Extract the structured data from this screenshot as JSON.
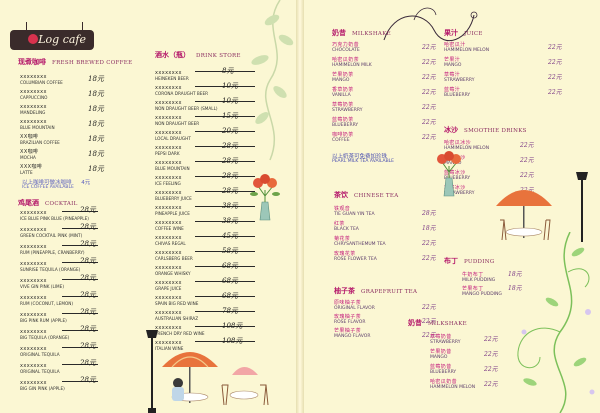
{
  "brand": {
    "logo_text": "Log cafe"
  },
  "left": {
    "coffee": {
      "title": "现煮咖啡",
      "title_en": "Fresh Brewed Coffee",
      "items": [
        {
          "zh": "",
          "en": "Columbian Coffee",
          "price": "18元"
        },
        {
          "zh": "",
          "en": "Cappuccino",
          "price": "18元"
        },
        {
          "zh": "",
          "en": "Mandeling",
          "price": "18元"
        },
        {
          "zh": "",
          "en": "Blue Mountain",
          "price": "18元"
        },
        {
          "zh": "XX咖啡",
          "en": "Brazilian Coffee",
          "price": "18元"
        },
        {
          "zh": "XX咖啡",
          "en": "Mocha",
          "price": "18元"
        },
        {
          "zh": "XXX咖啡",
          "en": "Latte",
          "price": "18元"
        }
      ],
      "promo_zh": "以上咖啡可做冰咖啡",
      "promo_price": "4元",
      "promo_en": "Ice Coffee Available"
    },
    "cocktail": {
      "title": "鸡尾酒",
      "title_en": "Cocktail",
      "items": [
        {
          "en": "Ice Blue Pink Blue (Pineapple)",
          "price": "28元"
        },
        {
          "en": "Green Cocktail Pink (Mint)",
          "price": "28元"
        },
        {
          "en": "Rum (Pineapple, Cranberry)",
          "price": "28元"
        },
        {
          "en": "Sunrise Tequila (Orange)",
          "price": "28元"
        },
        {
          "en": "Vive Gin Pink (Lime)",
          "price": "28元"
        },
        {
          "en": "Rum (Coconut, Lemon)",
          "price": "28元"
        },
        {
          "en": "Big Pink Rum (Apple)",
          "price": "28元"
        },
        {
          "en": "Big Tequila (Orange)",
          "price": "28元"
        },
        {
          "en": "Original Tequila",
          "price": "28元"
        },
        {
          "en": "Original Tequila",
          "price": "28元"
        },
        {
          "en": "Big Gin Pink (Apple)",
          "price": "28元"
        }
      ]
    },
    "drinks": {
      "title": "酒水（瓶）",
      "title_en": "Drink Store",
      "items": [
        {
          "en": "Heineken Beer",
          "price": "8元"
        },
        {
          "en": "Corona Draught Beer",
          "price": "10元"
        },
        {
          "en": "Non Draught Beer (Small)",
          "price": "10元"
        },
        {
          "en": "Non Draught Beer",
          "price": "15元"
        },
        {
          "en": "Local Draught",
          "price": "20元"
        },
        {
          "en": "Pepsi Dark",
          "price": "28元"
        },
        {
          "en": "Blue Mountain",
          "price": "28元"
        },
        {
          "en": "Ice Feeling",
          "price": "28元"
        },
        {
          "en": "Blueberry Juice",
          "price": "28元"
        },
        {
          "en": "Pineapple Juice",
          "price": "38元"
        },
        {
          "en": "Coffee Wine",
          "price": "38元"
        },
        {
          "en": "Chivas Regal",
          "price": "45元"
        },
        {
          "en": "Carlsberg Beer",
          "price": "58元"
        },
        {
          "en": "Orange Whisky",
          "price": "68元"
        },
        {
          "en": "Grape Juice",
          "price": "68元"
        },
        {
          "en": "Spain Big Red Wine",
          "price": "68元"
        },
        {
          "en": "Australian Shiraz",
          "price": "78元"
        },
        {
          "en": "French Dry Red Wine",
          "price": "108元"
        },
        {
          "en": "Italian Wine",
          "price": "108元"
        }
      ]
    }
  },
  "right": {
    "shake": {
      "title": "奶昔",
      "title_en": "Milkshake",
      "items": [
        {
          "zh": "巧克力奶昔",
          "en": "Chocolate",
          "price": "22元"
        },
        {
          "zh": "哈密瓜奶茶",
          "en": "Hamimelon Milk",
          "price": "22元"
        },
        {
          "zh": "芒果奶茶",
          "en": "Mango",
          "price": "22元"
        },
        {
          "zh": "香草奶茶",
          "en": "Vanilla",
          "price": "22元"
        },
        {
          "zh": "草莓奶茶",
          "en": "Strawberry",
          "price": "22元"
        },
        {
          "zh": "蓝莓奶茶",
          "en": "Blueberry",
          "price": "22元"
        },
        {
          "zh": "咖啡奶茶",
          "en": "Coffee",
          "price": "22元"
        }
      ],
      "promo_zh": "以上奶茶可免费加珍珠",
      "promo_en": "Pearl Milk Tea Available"
    },
    "tea": {
      "title": "茶饮",
      "title_en": "Chinese Tea",
      "items": [
        {
          "zh": "铁观音",
          "en": "Tie Guan Yin Tea",
          "price": "28元"
        },
        {
          "zh": "红茶",
          "en": "Black Tea",
          "price": "18元"
        },
        {
          "zh": "菊花茶",
          "en": "Chrysanthemum Tea",
          "price": "22元"
        },
        {
          "zh": "玫瑰花茶",
          "en": "Rose Flower Tea",
          "price": "22元"
        }
      ]
    },
    "citron": {
      "title": "柚子茶",
      "title_en": "Grapefruit Tea",
      "items": [
        {
          "zh": "原味柚子茶",
          "en": "Original Flavor",
          "price": "22元"
        },
        {
          "zh": "玫瑰柚子茶",
          "en": "Rose Flavor",
          "price": "22元"
        },
        {
          "zh": "芒果柚子茶",
          "en": "Mango Flavor",
          "price": "22元"
        }
      ]
    },
    "juice": {
      "title": "果汁",
      "title_en": "Juice",
      "items": [
        {
          "zh": "哈密瓜汁",
          "en": "Hamimelon Melon",
          "price": "22元"
        },
        {
          "zh": "芒果汁",
          "en": "Mango",
          "price": "22元"
        },
        {
          "zh": "草莓汁",
          "en": "Strawberry",
          "price": "22元"
        },
        {
          "zh": "蓝莓汁",
          "en": "Blueberry",
          "price": "22元"
        }
      ]
    },
    "smoothie": {
      "title": "冰沙",
      "title_en": "Smoothie Drinks",
      "items": [
        {
          "zh": "哈密瓜冰沙",
          "en": "Hamimelon Melon",
          "price": "22元"
        },
        {
          "zh": "芒果冰沙",
          "en": "Mango",
          "price": "22元"
        },
        {
          "zh": "蓝莓冰沙",
          "en": "Blueberry",
          "price": "22元"
        },
        {
          "zh": "草莓冰沙",
          "en": "Strawberry",
          "price": "22元"
        }
      ]
    },
    "pudding": {
      "title": "布丁",
      "title_en": "Pudding",
      "items": [
        {
          "zh": "牛奶布丁",
          "en": "Milk Pudding",
          "price": "18元"
        },
        {
          "zh": "芒果布丁",
          "en": "Mango Pudding",
          "price": "18元"
        }
      ]
    },
    "milkshake2": {
      "title": "奶昔",
      "title_en": "Milkshake",
      "items": [
        {
          "zh": "草莓奶昔",
          "en": "Strawberry",
          "price": "22元"
        },
        {
          "zh": "芒果奶昔",
          "en": "Mango",
          "price": "22元"
        },
        {
          "zh": "蓝莓奶昔",
          "en": "Blueberry",
          "price": "22元"
        },
        {
          "zh": "哈密瓜奶昔",
          "en": "Hamimelon Melon",
          "price": "22元"
        }
      ]
    }
  },
  "colors": {
    "section": "#b4186a",
    "price_right": "#7c3a86",
    "promo": "#5a5fbf",
    "background": "#fbf7d3"
  }
}
